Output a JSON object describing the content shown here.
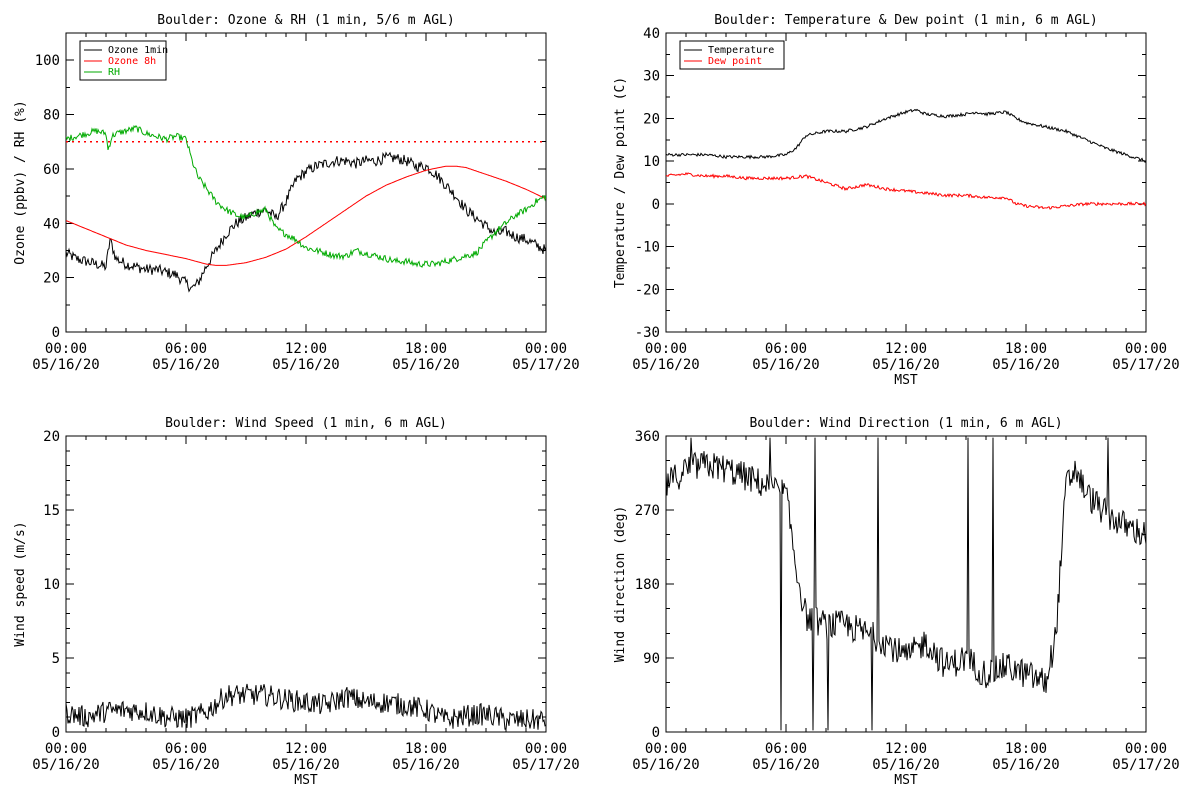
{
  "chart_data": [
    {
      "id": "ozone",
      "type": "line",
      "title": "Boulder: Ozone & RH (1 min, 5/6 m AGL)",
      "xlabel": "",
      "ylabel": "Ozone (ppbv) / RH (%)",
      "xlim": [
        0,
        24
      ],
      "ylim": [
        0,
        110
      ],
      "yticks": [
        0,
        20,
        40,
        60,
        80,
        100
      ],
      "xticks": [
        0,
        6,
        12,
        18,
        24
      ],
      "xticklabels": [
        [
          "00:00",
          "05/16/20"
        ],
        [
          "06:00",
          "05/16/20"
        ],
        [
          "12:00",
          "05/16/20"
        ],
        [
          "18:00",
          "05/16/20"
        ],
        [
          "00:00",
          "05/17/20"
        ]
      ],
      "legend": "top-left",
      "reference_line": {
        "y": 70,
        "color": "#ff0000",
        "style": "dotted"
      },
      "series": [
        {
          "name": "Ozone 1min",
          "color": "#000000",
          "x": [
            0,
            0.5,
            1,
            1.5,
            2,
            2.2,
            2.5,
            3,
            3.5,
            4,
            4.5,
            5,
            5.5,
            6,
            6.3,
            6.6,
            7,
            7.5,
            8,
            8.5,
            9,
            9.5,
            10,
            10.5,
            11,
            11.5,
            12,
            12.5,
            13,
            13.5,
            14,
            14.5,
            15,
            15.5,
            16,
            16.5,
            17,
            17.5,
            18,
            18.5,
            19,
            19.5,
            20,
            20.5,
            21,
            21.5,
            22,
            22.5,
            23,
            23.5,
            24
          ],
          "y": [
            29,
            27,
            26,
            25,
            24,
            34,
            27,
            25,
            24,
            23,
            23,
            22,
            21,
            18,
            16,
            18,
            24,
            30,
            36,
            40,
            42,
            44,
            45,
            42,
            48,
            56,
            59,
            61,
            62,
            63,
            63,
            62,
            63,
            63,
            64,
            64,
            63,
            61,
            61,
            58,
            54,
            50,
            45,
            42,
            39,
            36,
            37,
            35,
            34,
            32,
            30
          ],
          "noise": 2.0
        },
        {
          "name": "Ozone 8h",
          "color": "#ff0000",
          "x": [
            0,
            1,
            2,
            3,
            4,
            5,
            6,
            7,
            7.5,
            8,
            9,
            10,
            11,
            12,
            13,
            14,
            15,
            16,
            17,
            18,
            19,
            19.5,
            20,
            21,
            22,
            23,
            24
          ],
          "y": [
            41,
            38,
            35,
            32,
            30,
            28.5,
            27,
            25,
            24.5,
            24.5,
            25.5,
            27.5,
            30.5,
            35,
            40,
            45,
            50,
            54,
            57,
            59.5,
            61,
            61,
            60.5,
            58,
            55.5,
            52.5,
            49
          ],
          "noise": 0
        },
        {
          "name": "RH",
          "color": "#00aa00",
          "x": [
            0,
            0.5,
            1,
            1.5,
            2,
            2.1,
            2.3,
            2.5,
            3,
            3.5,
            4,
            4.5,
            5,
            5.5,
            6,
            6.3,
            6.6,
            7,
            7.5,
            8,
            8.5,
            9,
            9.5,
            10,
            10.5,
            11,
            11.5,
            12,
            12.5,
            13,
            13.5,
            14,
            14.5,
            15,
            15.5,
            16,
            16.5,
            17,
            17.5,
            18,
            18.5,
            19,
            19.5,
            20,
            20.5,
            21,
            21.5,
            22,
            22.5,
            23,
            23.5,
            24
          ],
          "y": [
            71,
            72,
            73,
            74,
            73,
            67,
            72,
            73,
            74,
            75,
            73,
            72,
            71,
            72,
            71,
            63,
            57,
            53,
            48,
            45,
            43,
            42,
            44,
            45,
            38,
            36,
            34,
            31,
            30,
            29,
            28,
            28,
            30,
            29,
            28,
            27,
            26,
            26,
            25,
            25,
            25,
            26,
            27,
            28,
            29,
            33,
            37,
            40,
            43,
            45,
            48,
            50
          ],
          "noise": 1.2
        }
      ]
    },
    {
      "id": "temp",
      "type": "line",
      "title": "Boulder: Temperature & Dew point (1 min, 6 m AGL)",
      "xlabel": "MST",
      "ylabel": "Temperature / Dew point (C)",
      "xlim": [
        0,
        24
      ],
      "ylim": [
        -30,
        40
      ],
      "yticks": [
        -30,
        -20,
        -10,
        0,
        10,
        20,
        30,
        40
      ],
      "xticks": [
        0,
        6,
        12,
        18,
        24
      ],
      "xticklabels": [
        [
          "00:00",
          "05/16/20"
        ],
        [
          "06:00",
          "05/16/20"
        ],
        [
          "12:00",
          "05/16/20"
        ],
        [
          "18:00",
          "05/16/20"
        ],
        [
          "00:00",
          "05/17/20"
        ]
      ],
      "legend": "top-left",
      "series": [
        {
          "name": "Temperature",
          "color": "#000000",
          "x": [
            0,
            1,
            2,
            3,
            4,
            5,
            6,
            6.5,
            7,
            8,
            9,
            10,
            11,
            12,
            12.5,
            13,
            14,
            15,
            15.5,
            16,
            17,
            17.5,
            18,
            19,
            20,
            21,
            22,
            23,
            24
          ],
          "y": [
            11.5,
            11.5,
            11.5,
            11,
            11,
            11,
            11.5,
            13,
            16,
            17,
            17,
            18,
            20,
            21.5,
            22,
            21,
            20.5,
            21,
            21.5,
            21,
            21.5,
            20,
            19,
            18,
            17,
            15,
            13,
            11.5,
            10
          ],
          "noise": 0.35
        },
        {
          "name": "Dew point",
          "color": "#ff0000",
          "x": [
            0,
            1,
            2,
            3,
            4,
            5,
            6,
            7,
            8,
            9,
            10,
            11,
            12,
            13,
            14,
            15,
            16,
            17,
            17.5,
            18,
            19,
            20,
            21,
            22,
            23,
            24
          ],
          "y": [
            6.5,
            7,
            6.5,
            6.5,
            6,
            6,
            6,
            6.5,
            5,
            3.5,
            4.5,
            3.5,
            3,
            2.5,
            2,
            2,
            1.5,
            1.5,
            0,
            -0.5,
            -1,
            -0.5,
            0,
            0,
            0,
            0
          ],
          "noise": 0.35
        }
      ]
    },
    {
      "id": "wspd",
      "type": "line",
      "title": "Boulder: Wind Speed (1 min, 6 m AGL)",
      "xlabel": "MST",
      "ylabel": "Wind speed (m/s)",
      "xlim": [
        0,
        24
      ],
      "ylim": [
        0,
        20
      ],
      "yticks": [
        0,
        5,
        10,
        15,
        20
      ],
      "xticks": [
        0,
        6,
        12,
        18,
        24
      ],
      "xticklabels": [
        [
          "00:00",
          "05/16/20"
        ],
        [
          "06:00",
          "05/16/20"
        ],
        [
          "12:00",
          "05/16/20"
        ],
        [
          "18:00",
          "05/16/20"
        ],
        [
          "00:00",
          "05/17/20"
        ]
      ],
      "legend": "none",
      "series": [
        {
          "name": "",
          "color": "#000000",
          "x": [
            0,
            1,
            2,
            3,
            4,
            5,
            6,
            7,
            8,
            9,
            10,
            11,
            12,
            13,
            14,
            15,
            16,
            17,
            18,
            19,
            20,
            21,
            22,
            23,
            24
          ],
          "y": [
            1.3,
            1.0,
            1.4,
            1.5,
            1.4,
            1.0,
            0.9,
            1.3,
            2.5,
            2.5,
            2.5,
            2.2,
            2.0,
            1.8,
            2.4,
            2.0,
            2.0,
            1.8,
            1.5,
            0.8,
            1.1,
            1.2,
            0.8,
            0.8,
            0.8
          ],
          "noise": 0.75
        }
      ]
    },
    {
      "id": "wdir",
      "type": "line",
      "title": "Boulder: Wind Direction (1 min, 6 m AGL)",
      "xlabel": "MST",
      "ylabel": "Wind direction (deg)",
      "xlim": [
        0,
        24
      ],
      "ylim": [
        0,
        360
      ],
      "yticks": [
        0,
        90,
        180,
        270,
        360
      ],
      "xticks": [
        0,
        6,
        12,
        18,
        24
      ],
      "xticklabels": [
        [
          "00:00",
          "05/16/20"
        ],
        [
          "06:00",
          "05/16/20"
        ],
        [
          "12:00",
          "05/16/20"
        ],
        [
          "18:00",
          "05/16/20"
        ],
        [
          "00:00",
          "05/17/20"
        ]
      ],
      "legend": "none",
      "series": [
        {
          "name": "",
          "color": "#000000",
          "x": [
            0,
            1,
            2,
            3,
            4,
            5,
            6,
            6.5,
            7,
            8,
            9,
            10,
            11,
            12,
            13,
            14,
            15,
            16,
            17,
            18,
            19,
            19.5,
            20,
            20.5,
            21,
            22,
            23,
            24
          ],
          "y": [
            300,
            320,
            325,
            320,
            310,
            300,
            290,
            200,
            140,
            130,
            130,
            120,
            110,
            90,
            110,
            80,
            90,
            70,
            80,
            70,
            60,
            120,
            300,
            320,
            290,
            265,
            250,
            240
          ],
          "noise": 18
        }
      ]
    }
  ]
}
